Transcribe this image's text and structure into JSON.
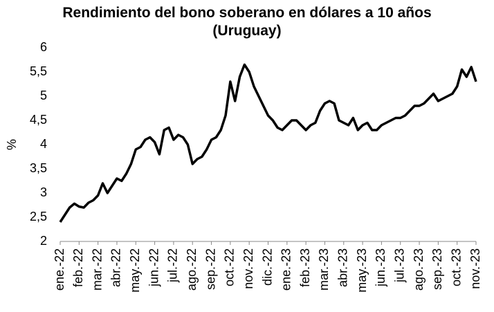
{
  "chart_data": {
    "type": "line",
    "title": "Rendimiento del bono soberano en dólares a 10 años (Uruguay)",
    "ylabel": "%",
    "x": [
      "ene.-22",
      "ene.-22",
      "ene.-22",
      "ene.-22",
      "feb.-22",
      "feb.-22",
      "feb.-22",
      "feb.-22",
      "mar.-22",
      "mar.-22",
      "mar.-22",
      "mar.-22",
      "abr.-22",
      "abr.-22",
      "abr.-22",
      "abr.-22",
      "may.-22",
      "may.-22",
      "may.-22",
      "may.-22",
      "jun.-22",
      "jun.-22",
      "jun.-22",
      "jun.-22",
      "jul.-22",
      "jul.-22",
      "jul.-22",
      "jul.-22",
      "ago.-22",
      "ago.-22",
      "ago.-22",
      "ago.-22",
      "sep.-22",
      "sep.-22",
      "sep.-22",
      "sep.-22",
      "oct.-22",
      "oct.-22",
      "oct.-22",
      "oct.-22",
      "nov.-22",
      "nov.-22",
      "nov.-22",
      "nov.-22",
      "dic.-22",
      "dic.-22",
      "dic.-22",
      "dic.-22",
      "ene.-23",
      "ene.-23",
      "ene.-23",
      "ene.-23",
      "feb.-23",
      "feb.-23",
      "feb.-23",
      "feb.-23",
      "mar.-23",
      "mar.-23",
      "mar.-23",
      "mar.-23",
      "abr.-23",
      "abr.-23",
      "abr.-23",
      "abr.-23",
      "may.-23",
      "may.-23",
      "may.-23",
      "may.-23",
      "jun.-23",
      "jun.-23",
      "jun.-23",
      "jun.-23",
      "jul.-23",
      "jul.-23",
      "jul.-23",
      "jul.-23",
      "ago.-23",
      "ago.-23",
      "ago.-23",
      "ago.-23",
      "sep.-23",
      "sep.-23",
      "sep.-23",
      "sep.-23",
      "oct.-23",
      "oct.-23",
      "oct.-23",
      "oct.-23",
      "nov.-23"
    ],
    "series": [
      {
        "name": "Rendimiento",
        "color": "#000000",
        "values": [
          2.4,
          2.55,
          2.7,
          2.78,
          2.72,
          2.7,
          2.8,
          2.85,
          2.95,
          3.2,
          3.0,
          3.15,
          3.3,
          3.25,
          3.4,
          3.6,
          3.9,
          3.95,
          4.1,
          4.15,
          4.05,
          3.8,
          4.3,
          4.35,
          4.1,
          4.2,
          4.15,
          4.0,
          3.6,
          3.7,
          3.75,
          3.9,
          4.1,
          4.15,
          4.3,
          4.6,
          5.3,
          4.9,
          5.4,
          5.65,
          5.5,
          5.2,
          5.0,
          4.8,
          4.6,
          4.5,
          4.35,
          4.3,
          4.4,
          4.5,
          4.5,
          4.4,
          4.3,
          4.4,
          4.45,
          4.7,
          4.85,
          4.9,
          4.85,
          4.5,
          4.45,
          4.4,
          4.55,
          4.3,
          4.4,
          4.45,
          4.3,
          4.3,
          4.4,
          4.45,
          4.5,
          4.55,
          4.55,
          4.6,
          4.7,
          4.8,
          4.8,
          4.85,
          4.95,
          5.05,
          4.9,
          4.95,
          5.0,
          5.05,
          5.2,
          5.55,
          5.4,
          5.6,
          5.3
        ]
      }
    ],
    "ylim": [
      2,
      6
    ],
    "yticks": [
      2,
      {
        "value": 2.5,
        "label": "2,5"
      },
      3,
      {
        "value": 3.5,
        "label": "3,5"
      },
      4,
      {
        "value": 4.5,
        "label": "4,5"
      },
      5,
      {
        "value": 5.5,
        "label": "5,5"
      },
      6
    ],
    "grid": false
  }
}
